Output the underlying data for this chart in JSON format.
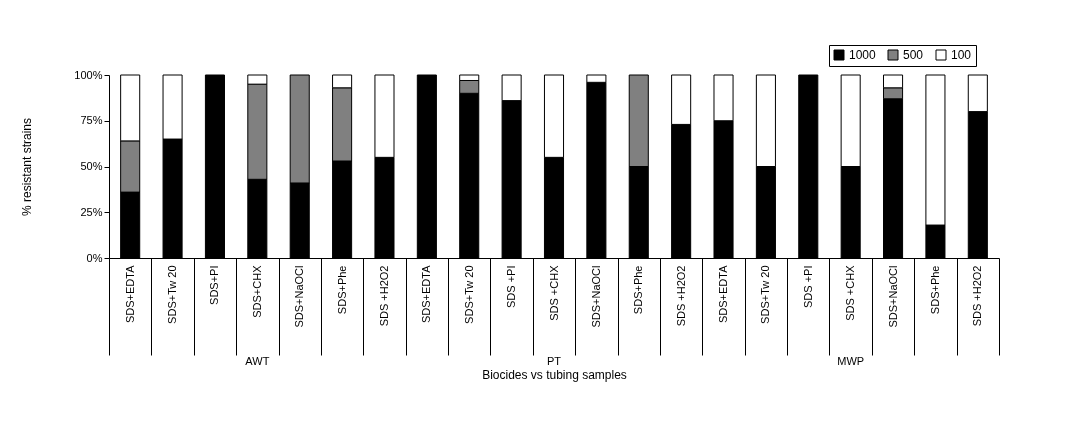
{
  "chart_data": {
    "type": "bar",
    "stacked": true,
    "xlabel": "Biocides vs tubing samples",
    "ylabel": "% resistant strains",
    "categories": [
      "SDS+EDTA",
      "SDS+Tw 20",
      "SDS+PI",
      "SDS+CHX",
      "SDS+NaOCl",
      "SDS+Phe",
      "SDS +H2O2",
      "SDS+EDTA",
      "SDS+Tw 20",
      "SDS +PI",
      "SDS +CHX",
      "SDS+NaOCl",
      "SDS+Phe",
      "SDS +H2O2",
      "SDS+EDTA",
      "SDS+Tw 20",
      "SDS +PI",
      "SDS +CHX",
      "SDS+NaOCl",
      "SDS+Phe",
      "SDS +H2O2"
    ],
    "series": [
      {
        "name": "1000",
        "color": "#000000",
        "values": [
          36,
          65,
          100,
          43,
          41,
          53,
          55,
          100,
          90,
          86,
          55,
          96,
          50,
          73,
          75,
          50,
          100,
          50,
          87,
          18,
          80
        ]
      },
      {
        "name": "500",
        "color": "#808080",
        "values": [
          28,
          0,
          0,
          52,
          59,
          40,
          0,
          0,
          7,
          0,
          0,
          0,
          50,
          0,
          0,
          0,
          0,
          0,
          6,
          0,
          0
        ]
      },
      {
        "name": "100",
        "color": "#ffffff",
        "values": [
          36,
          35,
          0,
          5,
          0,
          7,
          45,
          0,
          3,
          14,
          45,
          4,
          0,
          27,
          25,
          50,
          0,
          50,
          7,
          82,
          20
        ]
      }
    ],
    "ylim": [
      0,
      100
    ],
    "yticks": [
      {
        "value": 0,
        "label": "0%"
      },
      {
        "value": 25,
        "label": "25%"
      },
      {
        "value": 50,
        "label": "50%"
      },
      {
        "value": 75,
        "label": "75%"
      },
      {
        "value": 100,
        "label": "100%"
      }
    ],
    "annotations": [
      "AWT",
      "PT",
      "MWP"
    ],
    "legend": "top right"
  }
}
